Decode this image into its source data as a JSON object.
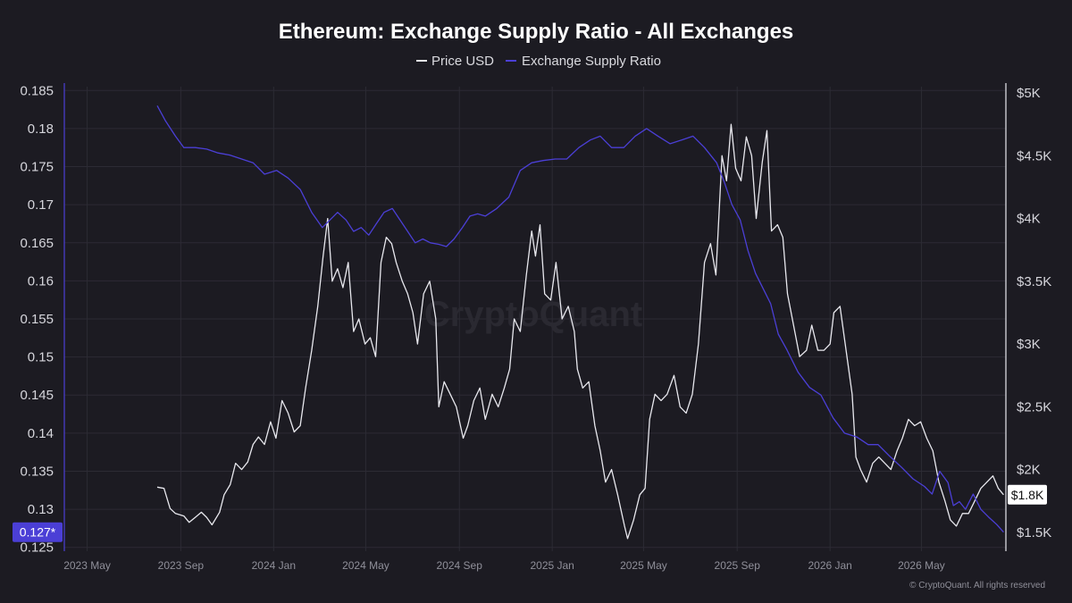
{
  "chart_data": {
    "type": "line",
    "title": "Ethereum: Exchange Supply Ratio - All Exchanges",
    "legend": [
      "Price USD",
      "Exchange Supply Ratio"
    ],
    "legend_placement": "top-center",
    "grid": true,
    "watermark": "CryptoQuant",
    "copyright": "© CryptoQuant. All rights reserved",
    "colors": {
      "background": "#1c1b22",
      "price": "#e8e8ee",
      "ratio": "#4b3fd6",
      "grid": "#2c2b34",
      "badge_left": "#4b3fd6",
      "badge_right": "#ffffff"
    },
    "x_axis": {
      "ticks": [
        "2023 May",
        "2023 Sep",
        "2024 Jan",
        "2024 May",
        "2024 Sep",
        "2025 Jan",
        "2025 May",
        "2025 Sep",
        "2026 Jan",
        "2026 May"
      ],
      "range": [
        "2023-04-01",
        "2026-08-20"
      ]
    },
    "y_left": {
      "ticks": [
        "0.125",
        "0.13",
        "0.135",
        "0.14",
        "0.145",
        "0.15",
        "0.155",
        "0.16",
        "0.165",
        "0.17",
        "0.175",
        "0.18",
        "0.185"
      ],
      "range": [
        0.1245,
        0.1855
      ],
      "last_value_label": "0.127*"
    },
    "y_right": {
      "ticks": [
        "$1.5K",
        "$2K",
        "$2.5K",
        "$3K",
        "$3.5K",
        "$4K",
        "$4.5K",
        "$5K"
      ],
      "range": [
        1350,
        5050
      ],
      "last_value_label": "$1.8K"
    },
    "series": [
      {
        "name": "Price USD",
        "axis": "right",
        "points": [
          [
            "2023-08-01",
            1860
          ],
          [
            "2023-08-10",
            1850
          ],
          [
            "2023-08-18",
            1690
          ],
          [
            "2023-08-25",
            1650
          ],
          [
            "2023-09-05",
            1630
          ],
          [
            "2023-09-12",
            1580
          ],
          [
            "2023-09-20",
            1620
          ],
          [
            "2023-09-28",
            1660
          ],
          [
            "2023-10-05",
            1620
          ],
          [
            "2023-10-12",
            1560
          ],
          [
            "2023-10-22",
            1660
          ],
          [
            "2023-10-28",
            1800
          ],
          [
            "2023-11-05",
            1880
          ],
          [
            "2023-11-12",
            2050
          ],
          [
            "2023-11-20",
            2000
          ],
          [
            "2023-11-28",
            2060
          ],
          [
            "2023-12-05",
            2200
          ],
          [
            "2023-12-12",
            2260
          ],
          [
            "2023-12-20",
            2200
          ],
          [
            "2023-12-28",
            2380
          ],
          [
            "2024-01-04",
            2250
          ],
          [
            "2024-01-12",
            2550
          ],
          [
            "2024-01-20",
            2450
          ],
          [
            "2024-01-28",
            2300
          ],
          [
            "2024-02-05",
            2350
          ],
          [
            "2024-02-12",
            2650
          ],
          [
            "2024-02-20",
            2950
          ],
          [
            "2024-02-28",
            3300
          ],
          [
            "2024-03-06",
            3700
          ],
          [
            "2024-03-12",
            4000
          ],
          [
            "2024-03-18",
            3500
          ],
          [
            "2024-03-25",
            3600
          ],
          [
            "2024-04-01",
            3450
          ],
          [
            "2024-04-08",
            3650
          ],
          [
            "2024-04-15",
            3100
          ],
          [
            "2024-04-22",
            3200
          ],
          [
            "2024-04-30",
            3000
          ],
          [
            "2024-05-07",
            3050
          ],
          [
            "2024-05-14",
            2900
          ],
          [
            "2024-05-21",
            3650
          ],
          [
            "2024-05-28",
            3850
          ],
          [
            "2024-06-04",
            3800
          ],
          [
            "2024-06-10",
            3650
          ],
          [
            "2024-06-18",
            3500
          ],
          [
            "2024-06-25",
            3400
          ],
          [
            "2024-07-02",
            3250
          ],
          [
            "2024-07-08",
            3000
          ],
          [
            "2024-07-16",
            3400
          ],
          [
            "2024-07-24",
            3500
          ],
          [
            "2024-08-01",
            3200
          ],
          [
            "2024-08-05",
            2500
          ],
          [
            "2024-08-12",
            2700
          ],
          [
            "2024-08-20",
            2600
          ],
          [
            "2024-08-28",
            2500
          ],
          [
            "2024-09-06",
            2250
          ],
          [
            "2024-09-12",
            2350
          ],
          [
            "2024-09-20",
            2550
          ],
          [
            "2024-09-28",
            2650
          ],
          [
            "2024-10-05",
            2400
          ],
          [
            "2024-10-14",
            2600
          ],
          [
            "2024-10-22",
            2500
          ],
          [
            "2024-10-30",
            2650
          ],
          [
            "2024-11-06",
            2800
          ],
          [
            "2024-11-12",
            3200
          ],
          [
            "2024-11-20",
            3100
          ],
          [
            "2024-11-28",
            3550
          ],
          [
            "2024-12-05",
            3900
          ],
          [
            "2024-12-10",
            3700
          ],
          [
            "2024-12-16",
            3950
          ],
          [
            "2024-12-22",
            3400
          ],
          [
            "2024-12-30",
            3350
          ],
          [
            "2025-01-06",
            3650
          ],
          [
            "2025-01-14",
            3200
          ],
          [
            "2025-01-22",
            3300
          ],
          [
            "2025-01-30",
            3100
          ],
          [
            "2025-02-03",
            2800
          ],
          [
            "2025-02-10",
            2650
          ],
          [
            "2025-02-18",
            2700
          ],
          [
            "2025-02-26",
            2350
          ],
          [
            "2025-03-05",
            2150
          ],
          [
            "2025-03-12",
            1900
          ],
          [
            "2025-03-20",
            2000
          ],
          [
            "2025-03-28",
            1800
          ],
          [
            "2025-04-06",
            1550
          ],
          [
            "2025-04-10",
            1450
          ],
          [
            "2025-04-18",
            1600
          ],
          [
            "2025-04-26",
            1800
          ],
          [
            "2025-05-03",
            1850
          ],
          [
            "2025-05-09",
            2400
          ],
          [
            "2025-05-16",
            2600
          ],
          [
            "2025-05-24",
            2550
          ],
          [
            "2025-06-01",
            2600
          ],
          [
            "2025-06-10",
            2750
          ],
          [
            "2025-06-18",
            2500
          ],
          [
            "2025-06-26",
            2450
          ],
          [
            "2025-07-04",
            2600
          ],
          [
            "2025-07-12",
            3000
          ],
          [
            "2025-07-20",
            3650
          ],
          [
            "2025-07-28",
            3800
          ],
          [
            "2025-08-04",
            3550
          ],
          [
            "2025-08-12",
            4500
          ],
          [
            "2025-08-18",
            4300
          ],
          [
            "2025-08-24",
            4750
          ],
          [
            "2025-08-30",
            4400
          ],
          [
            "2025-09-06",
            4300
          ],
          [
            "2025-09-13",
            4650
          ],
          [
            "2025-09-20",
            4500
          ],
          [
            "2025-09-26",
            4000
          ],
          [
            "2025-10-04",
            4450
          ],
          [
            "2025-10-10",
            4700
          ],
          [
            "2025-10-16",
            3900
          ],
          [
            "2025-10-24",
            3950
          ],
          [
            "2025-10-31",
            3850
          ],
          [
            "2025-11-06",
            3400
          ],
          [
            "2025-11-14",
            3150
          ],
          [
            "2025-11-22",
            2900
          ],
          [
            "2025-12-01",
            2950
          ],
          [
            "2025-12-08",
            3150
          ],
          [
            "2025-12-16",
            2950
          ],
          [
            "2025-12-24",
            2950
          ],
          [
            "2026-01-01",
            3000
          ],
          [
            "2026-01-06",
            3250
          ],
          [
            "2026-01-14",
            3300
          ],
          [
            "2026-01-22",
            2950
          ],
          [
            "2026-01-30",
            2600
          ],
          [
            "2026-02-04",
            2100
          ],
          [
            "2026-02-10",
            2000
          ],
          [
            "2026-02-18",
            1900
          ],
          [
            "2026-02-26",
            2050
          ],
          [
            "2026-03-06",
            2100
          ],
          [
            "2026-03-14",
            2050
          ],
          [
            "2026-03-22",
            2000
          ],
          [
            "2026-03-30",
            2150
          ],
          [
            "2026-04-06",
            2250
          ],
          [
            "2026-04-14",
            2400
          ],
          [
            "2026-04-22",
            2350
          ],
          [
            "2026-04-30",
            2380
          ],
          [
            "2026-05-08",
            2250
          ],
          [
            "2026-05-16",
            2150
          ],
          [
            "2026-05-24",
            1900
          ],
          [
            "2026-06-01",
            1750
          ],
          [
            "2026-06-08",
            1600
          ],
          [
            "2026-06-16",
            1550
          ],
          [
            "2026-06-24",
            1650
          ],
          [
            "2026-07-02",
            1650
          ],
          [
            "2026-07-10",
            1750
          ],
          [
            "2026-07-18",
            1850
          ],
          [
            "2026-07-26",
            1900
          ],
          [
            "2026-08-03",
            1950
          ],
          [
            "2026-08-10",
            1850
          ],
          [
            "2026-08-17",
            1800
          ]
        ]
      },
      {
        "name": "Exchange Supply Ratio",
        "axis": "left",
        "points": [
          [
            "2023-08-01",
            0.183
          ],
          [
            "2023-08-12",
            0.181
          ],
          [
            "2023-08-25",
            0.179
          ],
          [
            "2023-09-05",
            0.1775
          ],
          [
            "2023-09-20",
            0.1775
          ],
          [
            "2023-10-05",
            0.1773
          ],
          [
            "2023-10-20",
            0.1768
          ],
          [
            "2023-11-05",
            0.1765
          ],
          [
            "2023-11-20",
            0.176
          ],
          [
            "2023-12-05",
            0.1755
          ],
          [
            "2023-12-20",
            0.174
          ],
          [
            "2024-01-05",
            0.1745
          ],
          [
            "2024-01-20",
            0.1735
          ],
          [
            "2024-02-05",
            0.172
          ],
          [
            "2024-02-20",
            0.169
          ],
          [
            "2024-03-05",
            0.167
          ],
          [
            "2024-03-15",
            0.168
          ],
          [
            "2024-03-25",
            0.169
          ],
          [
            "2024-04-05",
            0.168
          ],
          [
            "2024-04-15",
            0.1665
          ],
          [
            "2024-04-25",
            0.167
          ],
          [
            "2024-05-05",
            0.166
          ],
          [
            "2024-05-15",
            0.1675
          ],
          [
            "2024-05-25",
            0.169
          ],
          [
            "2024-06-05",
            0.1695
          ],
          [
            "2024-06-15",
            0.168
          ],
          [
            "2024-06-25",
            0.1665
          ],
          [
            "2024-07-05",
            0.165
          ],
          [
            "2024-07-15",
            0.1655
          ],
          [
            "2024-07-25",
            0.165
          ],
          [
            "2024-08-05",
            0.1648
          ],
          [
            "2024-08-15",
            0.1645
          ],
          [
            "2024-08-25",
            0.1655
          ],
          [
            "2024-09-05",
            0.167
          ],
          [
            "2024-09-15",
            0.1685
          ],
          [
            "2024-09-25",
            0.1688
          ],
          [
            "2024-10-05",
            0.1685
          ],
          [
            "2024-10-20",
            0.1695
          ],
          [
            "2024-11-05",
            0.171
          ],
          [
            "2024-11-20",
            0.1745
          ],
          [
            "2024-12-05",
            0.1755
          ],
          [
            "2024-12-20",
            0.1758
          ],
          [
            "2025-01-05",
            0.176
          ],
          [
            "2025-01-20",
            0.176
          ],
          [
            "2025-02-05",
            0.1775
          ],
          [
            "2025-02-20",
            0.1785
          ],
          [
            "2025-03-05",
            0.179
          ],
          [
            "2025-03-20",
            0.1775
          ],
          [
            "2025-04-05",
            0.1775
          ],
          [
            "2025-04-20",
            0.179
          ],
          [
            "2025-05-05",
            0.18
          ],
          [
            "2025-05-20",
            0.179
          ],
          [
            "2025-06-05",
            0.178
          ],
          [
            "2025-06-20",
            0.1785
          ],
          [
            "2025-07-05",
            0.179
          ],
          [
            "2025-07-20",
            0.1775
          ],
          [
            "2025-08-05",
            0.1755
          ],
          [
            "2025-08-15",
            0.173
          ],
          [
            "2025-08-25",
            0.17
          ],
          [
            "2025-09-05",
            0.168
          ],
          [
            "2025-09-15",
            0.164
          ],
          [
            "2025-09-25",
            0.161
          ],
          [
            "2025-10-05",
            0.159
          ],
          [
            "2025-10-15",
            0.157
          ],
          [
            "2025-10-25",
            0.153
          ],
          [
            "2025-11-05",
            0.151
          ],
          [
            "2025-11-20",
            0.148
          ],
          [
            "2025-12-05",
            0.146
          ],
          [
            "2025-12-20",
            0.145
          ],
          [
            "2026-01-05",
            0.142
          ],
          [
            "2026-01-20",
            0.14
          ],
          [
            "2026-02-05",
            0.1395
          ],
          [
            "2026-02-20",
            0.1385
          ],
          [
            "2026-03-05",
            0.1385
          ],
          [
            "2026-03-20",
            0.137
          ],
          [
            "2026-04-05",
            0.1355
          ],
          [
            "2026-04-20",
            0.134
          ],
          [
            "2026-05-05",
            0.133
          ],
          [
            "2026-05-15",
            0.132
          ],
          [
            "2026-05-25",
            0.135
          ],
          [
            "2026-06-05",
            0.1335
          ],
          [
            "2026-06-12",
            0.1305
          ],
          [
            "2026-06-20",
            0.131
          ],
          [
            "2026-06-28",
            0.13
          ],
          [
            "2026-07-08",
            0.132
          ],
          [
            "2026-07-18",
            0.13
          ],
          [
            "2026-07-28",
            0.129
          ],
          [
            "2026-08-08",
            0.128
          ],
          [
            "2026-08-17",
            0.127
          ]
        ]
      }
    ]
  }
}
